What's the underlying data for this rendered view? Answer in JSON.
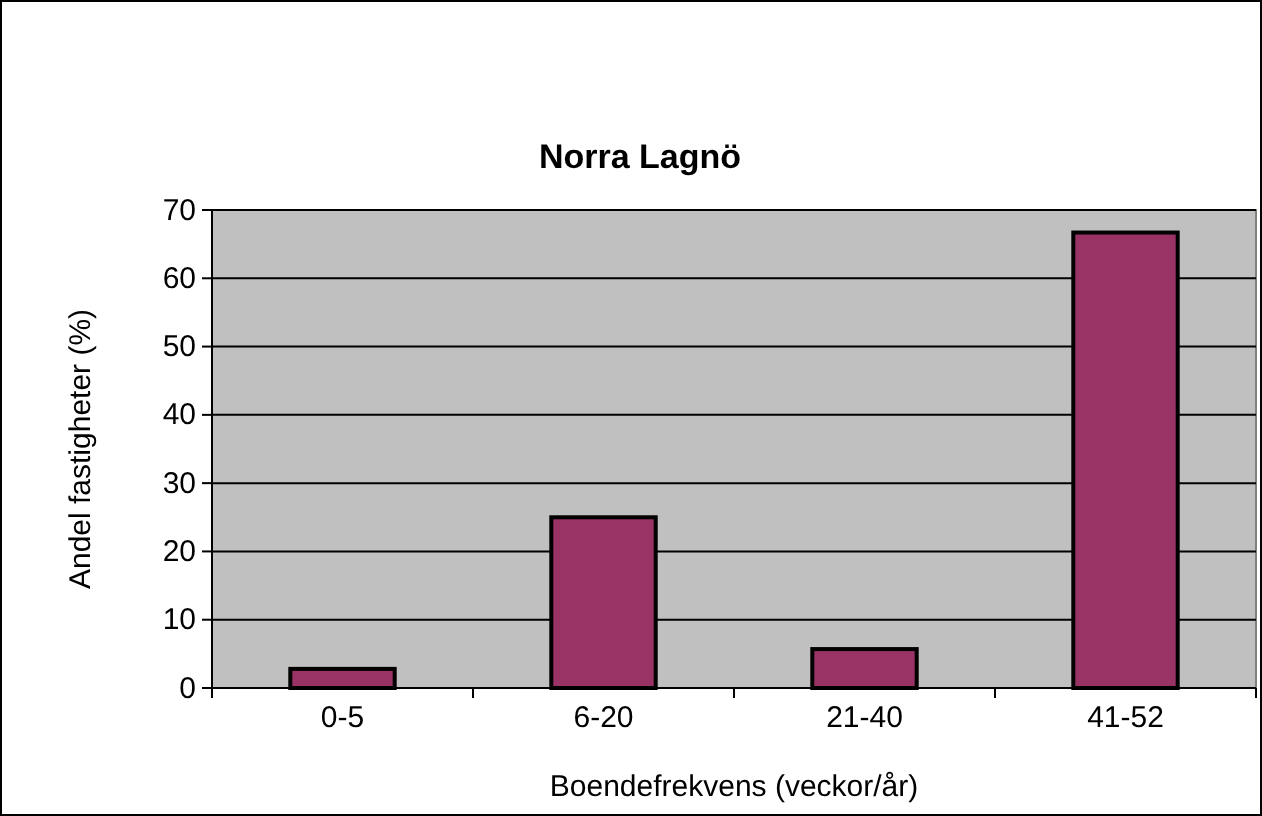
{
  "chart_data": {
    "type": "bar",
    "title": "Norra Lagnö",
    "xlabel": "Boendefrekvens (veckor/år)",
    "ylabel": "Andel fastigheter (%)",
    "categories": [
      "0-5",
      "6-20",
      "21-40",
      "41-52"
    ],
    "values": [
      2.8,
      25,
      5.7,
      66.7
    ],
    "color": "#993366",
    "ylim": [
      0,
      70
    ],
    "yticks": [
      0,
      10,
      20,
      30,
      40,
      50,
      60,
      70
    ],
    "grid": "y"
  }
}
